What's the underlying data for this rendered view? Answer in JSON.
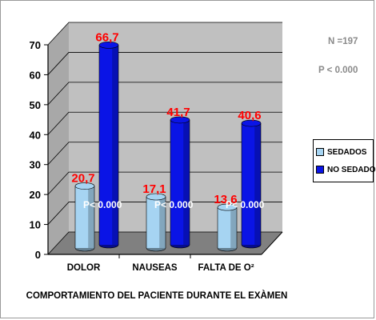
{
  "chart_data": {
    "type": "bar",
    "categories": [
      "DOLOR",
      "NAUSEAS",
      "FALTA DE O²"
    ],
    "series": [
      {
        "name": "SEDADOS",
        "values": [
          20.7,
          17.1,
          13.6
        ],
        "color": "#a6d4f2"
      },
      {
        "name": "NO SEDADOS",
        "values": [
          66.7,
          41.7,
          40.6
        ],
        "color": "#0a14e6"
      }
    ],
    "data_labels": {
      "SEDADOS": [
        "20,7",
        "17,1",
        "13,6"
      ],
      "NO SEDADOS": [
        "66,7",
        "41,7",
        "40,6"
      ]
    },
    "bar_annotations": [
      "P< 0.000",
      "P< 0.000",
      "P< 0.000"
    ],
    "xlabel": "COMPORTAMIENTO DEL PACIENTE DURANTE EL EXÀMEN",
    "ylabel": "",
    "ylim": [
      0,
      70
    ],
    "yticks": [
      0,
      10,
      20,
      30,
      40,
      50,
      60,
      70
    ],
    "legend_position": "right",
    "grid": true,
    "three_d": true
  },
  "notes": {
    "n": "N =197",
    "p": "P < 0.000"
  },
  "colors": {
    "wall": "#c0c0c0",
    "floor": "#808080",
    "label": "#ff0000"
  }
}
